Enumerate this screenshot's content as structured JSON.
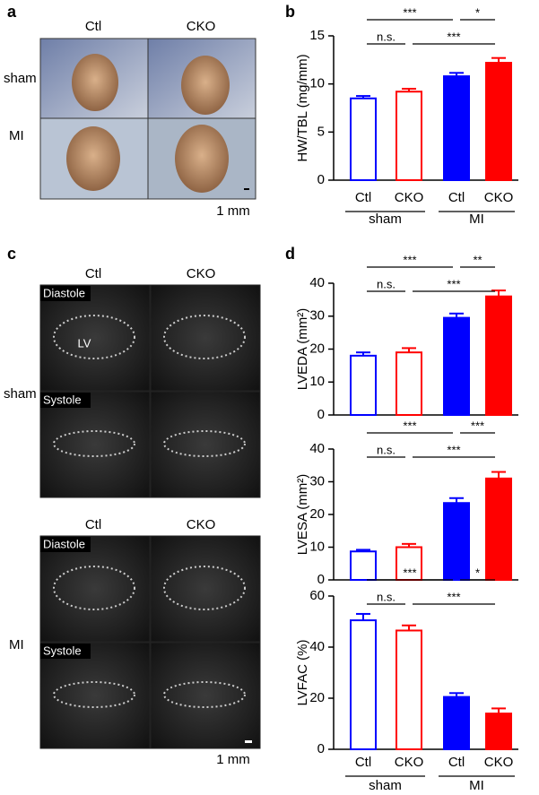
{
  "panel_labels": [
    "a",
    "b",
    "c",
    "d"
  ],
  "photos": {
    "columns": [
      "Ctl",
      "CKO"
    ],
    "rows": [
      "sham",
      "MI"
    ],
    "scale": "1 mm"
  },
  "echo": {
    "columns": [
      "Ctl",
      "CKO"
    ],
    "rows": [
      "sham",
      "MI"
    ],
    "phases": [
      "Diastole",
      "Systole"
    ],
    "lv": "LV",
    "scale": "1 mm"
  },
  "chart_data": [
    {
      "type": "bar",
      "ylabel": "HW/TBL (mg/mm)",
      "categories": [
        "Ctl",
        "CKO",
        "Ctl",
        "CKO"
      ],
      "groups": [
        "sham",
        "MI"
      ],
      "values": [
        8.5,
        9.2,
        10.8,
        12.2
      ],
      "errors": [
        0.25,
        0.3,
        0.35,
        0.5
      ],
      "colors": [
        "#0000ff",
        "#ff0000",
        "#0000ff",
        "#ff0000"
      ],
      "filled": [
        false,
        false,
        true,
        true
      ],
      "ylim": [
        0,
        15
      ],
      "yticks": [
        0,
        5,
        10,
        15
      ],
      "annotations": [
        "***",
        "*",
        "n.s.",
        "***"
      ]
    },
    {
      "type": "bar",
      "ylabel": "LVEDA (mm²)",
      "categories": [
        null,
        null,
        null,
        null
      ],
      "values": [
        18,
        19,
        29.5,
        36
      ],
      "errors": [
        1,
        1.3,
        1.3,
        1.8
      ],
      "colors": [
        "#0000ff",
        "#ff0000",
        "#0000ff",
        "#ff0000"
      ],
      "filled": [
        false,
        false,
        true,
        true
      ],
      "ylim": [
        0,
        40
      ],
      "yticks": [
        0,
        10,
        20,
        30,
        40
      ],
      "annotations": [
        "***",
        "**",
        "n.s.",
        "***"
      ]
    },
    {
      "type": "bar",
      "ylabel": "LVESA (mm²)",
      "categories": [
        null,
        null,
        null,
        null
      ],
      "values": [
        8.7,
        10,
        23.5,
        31
      ],
      "errors": [
        0.5,
        1,
        1.5,
        2
      ],
      "colors": [
        "#0000ff",
        "#ff0000",
        "#0000ff",
        "#ff0000"
      ],
      "filled": [
        false,
        false,
        true,
        true
      ],
      "ylim": [
        0,
        40
      ],
      "yticks": [
        0,
        10,
        20,
        30,
        40
      ],
      "annotations": [
        "***",
        "***",
        "n.s.",
        "***"
      ]
    },
    {
      "type": "bar",
      "ylabel": "LVFAC (%)",
      "categories": [
        "Ctl",
        "CKO",
        "Ctl",
        "CKO"
      ],
      "groups": [
        "sham",
        "MI"
      ],
      "values": [
        50.5,
        46.5,
        20.5,
        14
      ],
      "errors": [
        2.5,
        2,
        1.5,
        2
      ],
      "colors": [
        "#0000ff",
        "#ff0000",
        "#0000ff",
        "#ff0000"
      ],
      "filled": [
        false,
        false,
        true,
        true
      ],
      "ylim": [
        0,
        60
      ],
      "yticks": [
        0,
        20,
        40,
        60
      ],
      "annotations": [
        "***",
        "*",
        "n.s.",
        "***"
      ]
    }
  ]
}
